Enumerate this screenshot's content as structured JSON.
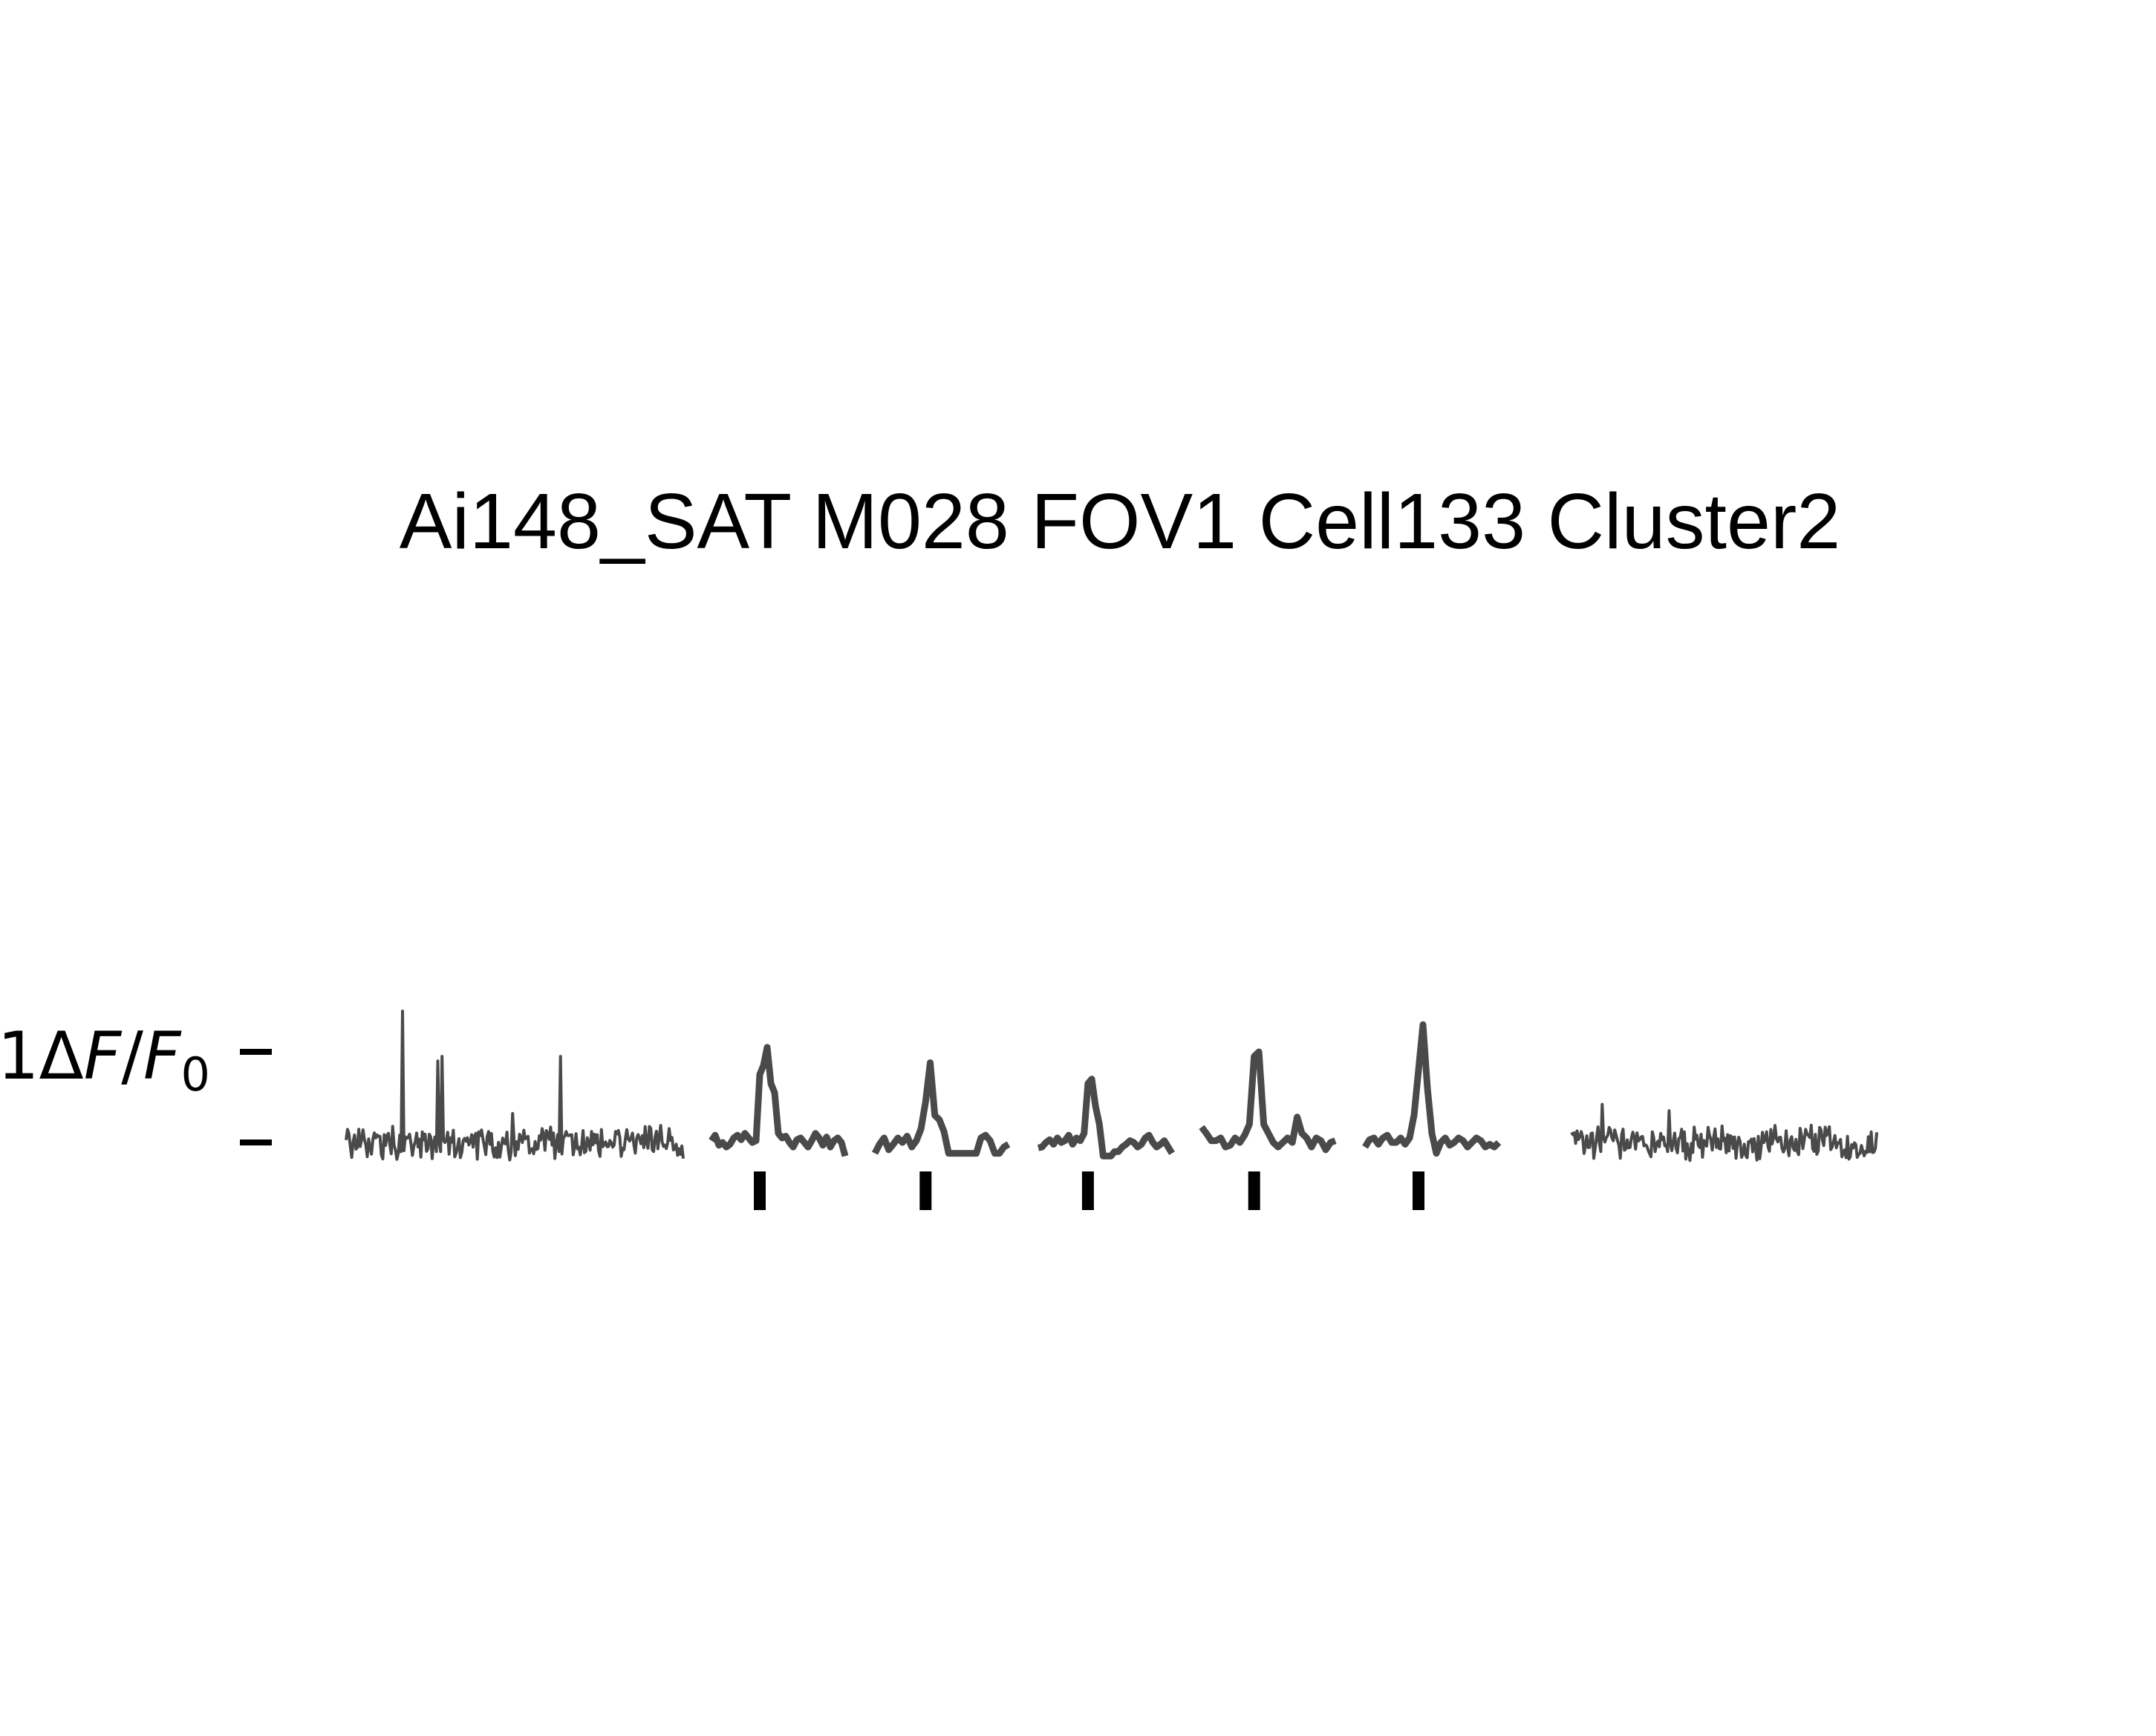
{
  "chart_data": {
    "type": "line",
    "title": "Ai148_SAT M028 FOV1 Cell133 Cluster2",
    "ylabel": {
      "prefix": "1",
      "delta": "Δ",
      "f": "F",
      "slash": "/",
      "f0": "F",
      "sub": "0"
    },
    "scale_bar_ticks": [
      0,
      1
    ],
    "colors": {
      "trace": "#4a4a4a",
      "stim": "#000000",
      "text": "#000000"
    },
    "segments": [
      {
        "name": "pre",
        "kind": "noise",
        "length": 240,
        "baseline": 0.0,
        "spikes": [
          {
            "pos": 40,
            "amp": 1.45
          },
          {
            "pos": 65,
            "amp": 0.9
          },
          {
            "pos": 68,
            "amp": 0.95
          },
          {
            "pos": 118,
            "amp": 0.32
          },
          {
            "pos": 152,
            "amp": 0.95
          }
        ]
      },
      {
        "name": "trial-1",
        "kind": "trial",
        "y": [
          0.02,
          0.08,
          -0.03,
          0.0,
          -0.05,
          -0.02,
          0.05,
          0.08,
          0.03,
          0.1,
          0.05,
          0.0,
          0.02,
          0.75,
          0.85,
          1.05,
          0.65,
          0.55,
          0.1,
          0.05,
          0.07,
          0.0,
          -0.05,
          0.03,
          0.05,
          0.0,
          -0.05,
          0.02,
          0.1,
          0.05,
          -0.03,
          0.06,
          -0.05,
          0.02,
          0.05,
          0.0,
          -0.15
        ]
      },
      {
        "name": "trial-2",
        "kind": "trial",
        "y": [
          -0.12,
          -0.02,
          0.05,
          -0.08,
          -0.02,
          0.05,
          0.0,
          0.07,
          -0.05,
          0.02,
          0.15,
          0.45,
          0.88,
          0.3,
          0.25,
          0.12,
          -0.12,
          -0.12,
          -0.12,
          -0.12,
          -0.12,
          -0.12,
          -0.12,
          0.05,
          0.08,
          0.02,
          -0.12,
          -0.12,
          -0.05,
          -0.02
        ]
      },
      {
        "name": "trial-3",
        "kind": "trial",
        "y": [
          -0.06,
          -0.05,
          0.0,
          0.03,
          -0.02,
          0.05,
          0.0,
          0.02,
          0.08,
          -0.02,
          0.05,
          0.02,
          0.1,
          0.65,
          0.7,
          0.4,
          0.2,
          -0.15,
          -0.15,
          -0.15,
          -0.1,
          -0.1,
          -0.05,
          -0.02,
          0.02,
          0.0,
          -0.05,
          -0.02,
          0.05,
          0.08,
          0.0,
          -0.05,
          -0.02,
          0.02,
          -0.05,
          -0.12
        ]
      },
      {
        "name": "trial-4",
        "kind": "trial",
        "y": [
          0.17,
          0.1,
          0.02,
          0.02,
          0.05,
          -0.05,
          -0.03,
          0.05,
          0.0,
          0.08,
          0.2,
          0.95,
          1.0,
          0.2,
          0.1,
          0.0,
          -0.05,
          0.0,
          0.05,
          0.0,
          0.28,
          0.1,
          0.05,
          -0.05,
          0.05,
          0.02,
          -0.08,
          0.0,
          0.02
        ]
      },
      {
        "name": "trial-5",
        "kind": "trial",
        "y": [
          -0.05,
          0.03,
          0.05,
          -0.02,
          0.05,
          0.08,
          0.0,
          0.0,
          0.05,
          -0.02,
          0.05,
          0.3,
          0.8,
          1.3,
          0.6,
          0.1,
          -0.12,
          0.0,
          0.05,
          -0.03,
          0.0,
          0.05,
          0.02,
          -0.05,
          0.0,
          0.05,
          0.02,
          -0.05,
          -0.02,
          -0.05,
          0.0
        ]
      },
      {
        "name": "post",
        "kind": "noise",
        "length": 220,
        "baseline": 0.0,
        "spikes": [
          {
            "pos": 22,
            "amp": 0.42
          },
          {
            "pos": 70,
            "amp": 0.35
          }
        ]
      }
    ],
    "stim_markers": [
      {
        "trial": 1,
        "frame": 13
      },
      {
        "trial": 2,
        "frame": 11
      },
      {
        "trial": 3,
        "frame": 13
      },
      {
        "trial": 4,
        "frame": 11
      },
      {
        "trial": 5,
        "frame": 12
      }
    ]
  }
}
